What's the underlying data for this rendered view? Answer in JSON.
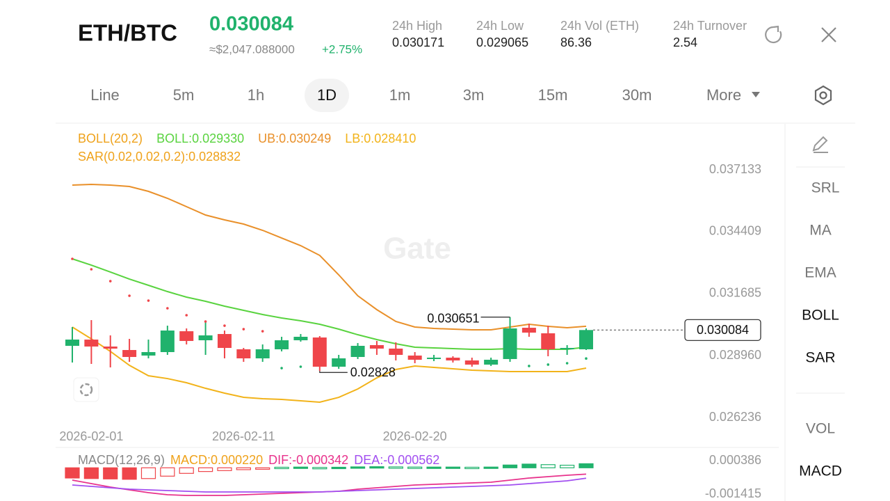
{
  "header": {
    "pair": "ETH/BTC",
    "price": "0.030084",
    "usd_price": "≈$2,047.088000",
    "change": "+2.75%",
    "stats": [
      {
        "label": "24h  High",
        "value": "0.030171"
      },
      {
        "label": "24h  Low",
        "value": "0.029065"
      },
      {
        "label": "24h  Vol (ETH)",
        "value": "86.36"
      },
      {
        "label": "24h  Turnover",
        "value": "2.54"
      }
    ]
  },
  "tabs": {
    "items": [
      "Line",
      "5m",
      "1h",
      "1D",
      "1m",
      "3m",
      "15m",
      "30m",
      "More"
    ],
    "active": 3
  },
  "sidebar": {
    "items": [
      "SRL",
      "MA",
      "EMA",
      "BOLL",
      "SAR",
      "VOL",
      "MACD"
    ],
    "active": [
      3,
      4,
      6
    ]
  },
  "watermark": "Gate",
  "chart_data": [
    {
      "type": "candlestick",
      "legend": [
        [
          {
            "text": "BOLL(20,2)",
            "color": "#efa21b"
          },
          {
            "text": "BOLL:0.029330",
            "color": "#59d33f"
          },
          {
            "text": "UB:0.030249",
            "color": "#e9902a"
          },
          {
            "text": "LB:0.028410",
            "color": "#f2b31a"
          }
        ],
        [
          {
            "text": "SAR(0.02,0.02,0.2):0.028832",
            "color": "#efa21b"
          }
        ]
      ],
      "categories": [
        null,
        "2026-02-01",
        null,
        null,
        null,
        null,
        null,
        null,
        null,
        "2026-02-11",
        null,
        null,
        null,
        null,
        null,
        null,
        null,
        null,
        "2026-02-20",
        null,
        null,
        null,
        null,
        null,
        null,
        null,
        null,
        null
      ],
      "open": [
        0.029389,
        0.029664,
        0.029358,
        0.029205,
        0.028961,
        0.029114,
        0.030031,
        0.029634,
        0.029909,
        0.029236,
        0.028838,
        0.029236,
        0.029634,
        0.029756,
        0.028471,
        0.028899,
        0.02942,
        0.029267,
        0.028961,
        0.028808,
        0.028869,
        0.028746,
        0.028563,
        0.028808,
        0.030184,
        0.02994,
        0.029236,
        0.029236
      ],
      "high": [
        0.030215,
        0.030521,
        0.029848,
        0.029695,
        0.029664,
        0.030276,
        0.030154,
        0.030429,
        0.030062,
        0.029297,
        0.02945,
        0.029787,
        0.029909,
        0.029817,
        0.028991,
        0.029511,
        0.029603,
        0.029542,
        0.029114,
        0.028991,
        0.02893,
        0.028869,
        0.028869,
        0.030651,
        0.030368,
        0.030276,
        0.02942,
        0.030154
      ],
      "low": [
        0.028655,
        0.028593,
        0.02844,
        0.028685,
        0.028838,
        0.028991,
        0.02945,
        0.028991,
        0.028838,
        0.028685,
        0.028685,
        0.029144,
        0.029573,
        0.02828,
        0.028379,
        0.028808,
        0.028991,
        0.028746,
        0.028624,
        0.028716,
        0.028655,
        0.028471,
        0.028502,
        0.028685,
        0.029787,
        0.02893,
        0.028991,
        0.029205
      ],
      "close": [
        0.029664,
        0.029358,
        0.029267,
        0.028899,
        0.029114,
        0.030062,
        0.029603,
        0.029848,
        0.029297,
        0.028838,
        0.029236,
        0.029634,
        0.029787,
        0.028471,
        0.028838,
        0.029389,
        0.029267,
        0.028991,
        0.028777,
        0.028869,
        0.028746,
        0.028563,
        0.028777,
        0.030154,
        0.02997,
        0.029236,
        0.029297,
        0.030084
      ],
      "up_color": "#20b26c",
      "down_color": "#ef454a",
      "overlays": [
        {
          "color": "#e9902a",
          "values": [
            0.03646,
            0.03649,
            0.03646,
            0.036398,
            0.036184,
            0.035878,
            0.035511,
            0.035143,
            0.034929,
            0.034745,
            0.03447,
            0.034133,
            0.033796,
            0.033368,
            0.032511,
            0.031593,
            0.030981,
            0.03046,
            0.030215,
            0.030154,
            0.030123,
            0.030093,
            0.030093,
            0.030215,
            0.030338,
            0.030246,
            0.030184,
            0.030249
          ]
        },
        {
          "color": "#59d33f",
          "values": [
            0.033215,
            0.032939,
            0.032634,
            0.032327,
            0.032052,
            0.031776,
            0.031531,
            0.031348,
            0.031133,
            0.03095,
            0.030766,
            0.030613,
            0.030491,
            0.030338,
            0.030123,
            0.029878,
            0.029664,
            0.02948,
            0.029327,
            0.029297,
            0.029267,
            0.029236,
            0.029236,
            0.029267,
            0.029236,
            0.029236,
            0.029236,
            0.02933
          ]
        },
        {
          "color": "#f2b31a",
          "values": [
            0.030215,
            0.029695,
            0.029144,
            0.028532,
            0.028072,
            0.027949,
            0.027766,
            0.027521,
            0.027307,
            0.027123,
            0.027062,
            0.027032,
            0.026971,
            0.02691,
            0.027123,
            0.027491,
            0.02798,
            0.028348,
            0.028502,
            0.02844,
            0.028379,
            0.028318,
            0.028287,
            0.028256,
            0.028256,
            0.028256,
            0.028256,
            0.02841
          ]
        }
      ],
      "sar": [
        0.033215,
        0.032756,
        0.032235,
        0.031593,
        0.031378,
        0.031042,
        0.030736,
        0.03046,
        0.030276,
        0.030123,
        0.030031,
        0.028409,
        0.028471,
        null,
        null,
        null,
        null,
        null,
        null,
        null,
        null,
        null,
        null,
        null,
        0.028502,
        0.028563,
        0.028624,
        0.028832
      ],
      "ylim": [
        0.025012,
        0.039092
      ],
      "yticks": [
        0.037133,
        0.034409,
        0.031685,
        {
          "value": 0.02896,
          "label": "0.028960"
        },
        0.026236
      ]
    },
    {
      "type": "macd",
      "legend": [
        {
          "text": "MACD(12,26,9)",
          "color": "#888888"
        },
        {
          "text": "MACD:0.000220",
          "color": "#efa21b"
        },
        {
          "text": "DIF:-0.000342",
          "color": "#e8328c"
        },
        {
          "text": "DEA:-0.000562",
          "color": "#a24ff0"
        }
      ],
      "histogram": [
        -0.00055,
        -0.00058,
        -0.0006,
        -0.00062,
        -0.00058,
        -0.00045,
        -0.0003,
        -0.0002,
        -0.00015,
        -0.0001,
        -8e-05,
        3e-05,
        4e-05,
        2e-05,
        3e-05,
        5e-05,
        6e-05,
        5e-05,
        4e-05,
        4e-05,
        4e-05,
        3e-05,
        4e-05,
        0.00015,
        0.0002,
        0.00017,
        0.00014,
        0.00022
      ],
      "lines": [
        {
          "color": "#e8328c",
          "values": [
            -0.000665,
            -0.000852,
            -0.00104,
            -0.00119,
            -0.00134,
            -0.001453,
            -0.00149,
            -0.00149,
            -0.00149,
            -0.001453,
            -0.001415,
            -0.001378,
            -0.00134,
            -0.001303,
            -0.001265,
            -0.001153,
            -0.001078,
            -0.001003,
            -0.000927,
            -0.00089,
            -0.000852,
            -0.000815,
            -0.000777,
            -0.000665,
            -0.000552,
            -0.000477,
            -0.000402,
            -0.000342
          ]
        },
        {
          "color": "#a24ff0",
          "values": [
            -0.000927,
            -0.001003,
            -0.001078,
            -0.001153,
            -0.00119,
            -0.001228,
            -0.001265,
            -0.001303,
            -0.001303,
            -0.001303,
            -0.001303,
            -0.001303,
            -0.001303,
            -0.001303,
            -0.001265,
            -0.001228,
            -0.00119,
            -0.001153,
            -0.001115,
            -0.001078,
            -0.00104,
            -0.001003,
            -0.000965,
            -0.000927,
            -0.000852,
            -0.000777,
            -0.000702,
            -0.000562
          ]
        }
      ],
      "up_color": "#20b26c",
      "down_color": "#ef454a",
      "ylim": [
        -0.00179,
        0.001024
      ],
      "yticks": [
        0.000386,
        -0.001415
      ]
    }
  ]
}
